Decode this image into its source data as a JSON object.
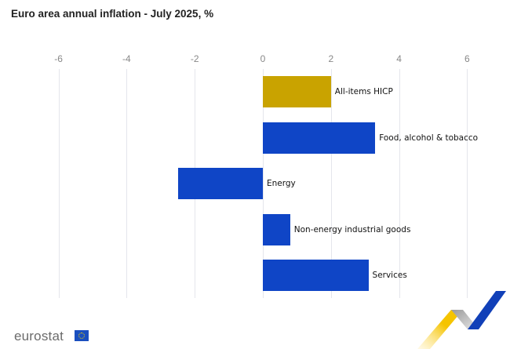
{
  "title": "Euro area annual inflation - July 2025, %",
  "axis": {
    "ticks": [
      "-6",
      "-4",
      "-2",
      "0",
      "2",
      "4",
      "6"
    ]
  },
  "bars": [
    {
      "label": "All-items HICP",
      "value": 2.0,
      "color": "#c9a300"
    },
    {
      "label": "Food, alcohol & tobacco",
      "value": 3.3,
      "color": "#0f45c6"
    },
    {
      "label": "Energy",
      "value": -2.5,
      "color": "#0f45c6"
    },
    {
      "label": "Non-energy industrial goods",
      "value": 0.8,
      "color": "#0f45c6"
    },
    {
      "label": "Services",
      "value": 3.1,
      "color": "#0f45c6"
    }
  ],
  "footer": {
    "logo_text": "eurostat"
  },
  "chart_data": {
    "type": "bar",
    "orientation": "horizontal",
    "title": "Euro area annual inflation - July 2025, %",
    "categories": [
      "All-items HICP",
      "Food, alcohol & tobacco",
      "Energy",
      "Non-energy industrial goods",
      "Services"
    ],
    "values": [
      2.0,
      3.3,
      -2.5,
      0.8,
      3.1
    ],
    "colors": [
      "#c9a300",
      "#0f45c6",
      "#0f45c6",
      "#0f45c6",
      "#0f45c6"
    ],
    "xlabel": "",
    "ylabel": "",
    "xlim": [
      -6,
      6
    ],
    "xticks": [
      -6,
      -4,
      -2,
      0,
      2,
      4,
      6
    ],
    "grid": true,
    "legend": "none"
  }
}
